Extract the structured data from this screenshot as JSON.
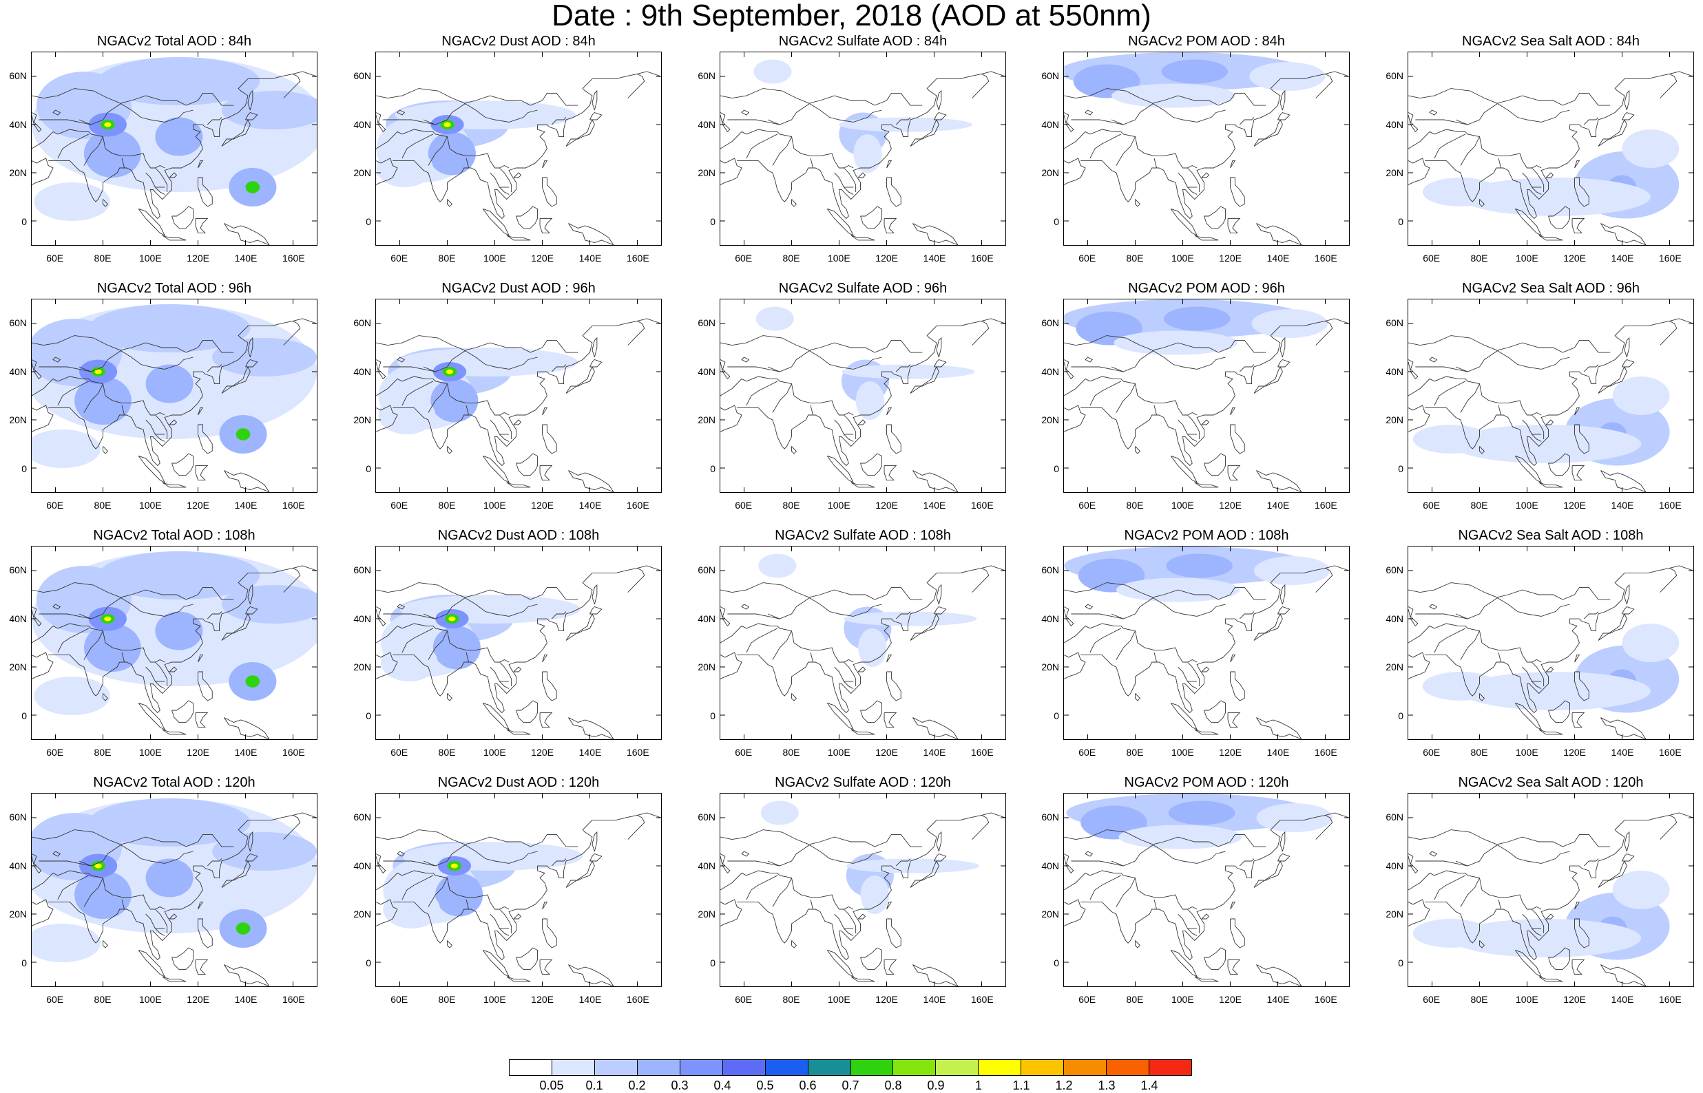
{
  "title": "Date : 9th September, 2018 (AOD at 550nm)",
  "rows": [
    [
      "NGACv2 Total AOD : 84h",
      "NGACv2 Dust AOD : 84h",
      "NGACv2 Sulfate AOD : 84h",
      "NGACv2 POM AOD : 84h",
      "NGACv2 Sea Salt AOD : 84h"
    ],
    [
      "NGACv2 Total AOD : 96h",
      "NGACv2 Dust AOD : 96h",
      "NGACv2 Sulfate AOD : 96h",
      "NGACv2 POM AOD : 96h",
      "NGACv2 Sea Salt AOD : 96h"
    ],
    [
      "NGACv2 Total AOD : 108h",
      "NGACv2 Dust AOD : 108h",
      "NGACv2 Sulfate AOD : 108h",
      "NGACv2 POM AOD : 108h",
      "NGACv2 Sea Salt AOD : 108h"
    ],
    [
      "NGACv2 Total AOD : 120h",
      "NGACv2 Dust AOD : 120h",
      "NGACv2 Sulfate AOD : 120h",
      "NGACv2 POM AOD : 120h",
      "NGACv2 Sea Salt  AOD : 120h"
    ]
  ],
  "lat_ticks": [
    "60N",
    "40N",
    "20N",
    "0"
  ],
  "lon_ticks": [
    "60E",
    "80E",
    "100E",
    "120E",
    "140E",
    "160E"
  ],
  "colorbar": {
    "labels": [
      "0.05",
      "0.1",
      "0.2",
      "0.3",
      "0.4",
      "0.5",
      "0.6",
      "0.7",
      "0.8",
      "0.9",
      "1",
      "1.1",
      "1.2",
      "1.3",
      "1.4"
    ],
    "colors": [
      "#ffffff",
      "#dce6ff",
      "#bccdff",
      "#9db4ff",
      "#7d94ff",
      "#5c6cf5",
      "#1a5ef2",
      "#169096",
      "#2fd20e",
      "#84e40e",
      "#c4f050",
      "#ffff00",
      "#fcc400",
      "#f88c00",
      "#f86200",
      "#f52814"
    ]
  },
  "plume_colors": {
    "light": "#dce6ff",
    "mid": "#bccdff",
    "strong": "#9db4ff",
    "heavy": "#7d94ff",
    "green": "#2fd20e",
    "yellow": "#ffff00"
  }
}
